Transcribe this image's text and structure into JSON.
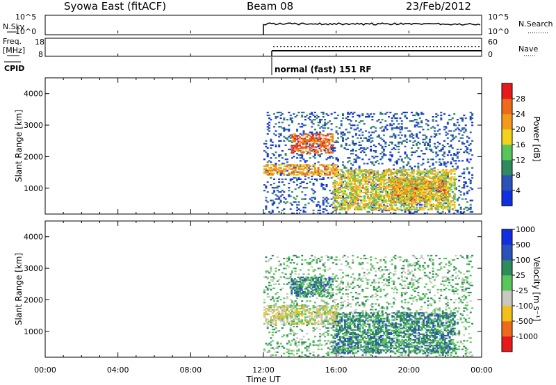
{
  "header": {
    "title": "Syowa East (fitACF)",
    "beam": "Beam 08",
    "date": "23/Feb/2012"
  },
  "params": {
    "nsky_label": "N.Sky",
    "nsky_top_tick": "10^5",
    "nsky_bottom_tick": "10^0",
    "nsearch_label": "N.Search",
    "freq_label": "Freq.",
    "freq_unit": "[MHz]",
    "freq_top_tick": "18",
    "freq_bottom_tick": "8",
    "nave_label": "Nave",
    "nave_top_tick": "60",
    "nave_bottom_tick": "0",
    "cpid_label": "CPID",
    "cpid_text": "normal (fast) 151 RF"
  },
  "colors": {
    "power": [
      "#1030e0",
      "#2a52b8",
      "#2f8a5e",
      "#58c65a",
      "#f2d21a",
      "#f29a1a",
      "#ec6a1a",
      "#e61a1a"
    ],
    "velocity": [
      "#e61a1a",
      "#ec6a1a",
      "#f2c01a",
      "#c8c8c0",
      "#58c65a",
      "#2f8a5e",
      "#2a52b8",
      "#1030e0"
    ]
  },
  "chart_data": [
    {
      "type": "heatmap",
      "name": "power",
      "ylabel": "Slant Range [km]",
      "xlabel": "Time UT",
      "x_ticks": [
        "00:00",
        "04:00",
        "08:00",
        "12:00",
        "16:00",
        "20:00",
        "00:00"
      ],
      "y_ticks": [
        "1000",
        "2000",
        "3000",
        "4000"
      ],
      "ylim": [
        180,
        4500
      ],
      "xlim_hours": [
        0,
        24
      ],
      "colorbar": {
        "label": "Power [dB]",
        "ticks": [
          "4",
          "8",
          "12",
          "16",
          "20",
          "24",
          "28"
        ],
        "range": [
          0,
          32
        ]
      },
      "regions": [
        {
          "t0": 12.0,
          "t1": 16.0,
          "r0": 1400,
          "r1": 1750,
          "level": 5
        },
        {
          "t0": 13.5,
          "t1": 15.8,
          "r0": 2100,
          "r1": 2700,
          "level": 6
        },
        {
          "t0": 15.8,
          "t1": 22.5,
          "r0": 300,
          "r1": 1600,
          "level": 4
        },
        {
          "t0": 19.0,
          "t1": 22.0,
          "r0": 600,
          "r1": 1300,
          "level": 6
        },
        {
          "t0": 12.0,
          "t1": 23.5,
          "r0": 180,
          "r1": 3400,
          "level": 1
        }
      ]
    },
    {
      "type": "heatmap",
      "name": "velocity",
      "ylabel": "Slant Range [km]",
      "xlabel": "Time UT",
      "x_ticks": [
        "00:00",
        "04:00",
        "08:00",
        "12:00",
        "16:00",
        "20:00",
        "00:00"
      ],
      "y_ticks": [
        "1000",
        "2000",
        "3000",
        "4000"
      ],
      "ylim": [
        180,
        4500
      ],
      "xlim_hours": [
        0,
        24
      ],
      "colorbar": {
        "label": "Velocity [m s⁻¹]",
        "ticks": [
          "-1000",
          "-500",
          "-100",
          "-25",
          "25",
          "100",
          "500",
          "1000"
        ]
      },
      "regions": [
        {
          "t0": 12.0,
          "t1": 16.0,
          "r0": 1200,
          "r1": 1800,
          "level": 3
        },
        {
          "t0": 13.5,
          "t1": 15.8,
          "r0": 2100,
          "r1": 2700,
          "level": 5
        },
        {
          "t0": 15.8,
          "t1": 22.5,
          "r0": 300,
          "r1": 1600,
          "level": 5
        },
        {
          "t0": 12.0,
          "t1": 23.5,
          "r0": 180,
          "r1": 3400,
          "level": 4
        }
      ]
    }
  ]
}
